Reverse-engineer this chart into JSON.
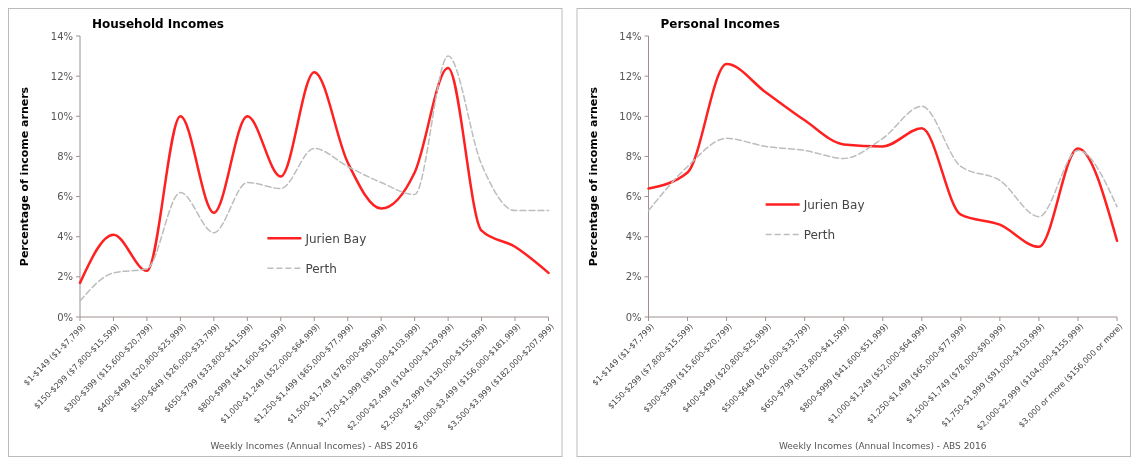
{
  "chart_data": [
    {
      "type": "line",
      "title": "Household Incomes",
      "xlabel": "Weekly Incomes (Annual Incomes) - ABS 2016",
      "ylabel": "Percentage of income arners",
      "categories": [
        "$1-$149 ($1-$7,799)",
        "$150-$299 ($7,800-$15,599)",
        "$300-$399 ($15,600-$20,799)",
        "$400-$499 ($20,800-$25,999)",
        "$500-$649 ($26,000-$33,799)",
        "$650-$799 ($33,800-$41,599)",
        "$800-$999 ($41,600-$51,999)",
        "$1,000-$1,249 ($52,000-$64,999)",
        "$1,250-$1,499 ($65,000-$77,999)",
        "$1,500-$1,749 ($78,000-$90,999)",
        "$1,750-$1,999 ($91,000-$103,999)",
        "$2,000-$2,499 ($104,000-$129,999)",
        "$2,500-$2,999 ($130,000-$155,999)",
        "$3,000-$3,499 ($156,000-$181,999)",
        "$3,500-$3,999 ($182,000-$207,999)"
      ],
      "series": [
        {
          "name": "Jurien Bay",
          "color": "#ff2121",
          "line_style": "solid",
          "values": [
            1.7,
            4.1,
            2.3,
            10.0,
            5.2,
            10.0,
            7.0,
            12.2,
            7.7,
            5.4,
            7.2,
            12.4,
            4.3,
            3.5,
            2.2
          ]
        },
        {
          "name": "Perth",
          "color": "#bdbdbd",
          "line_style": "dashed",
          "values": [
            0.8,
            2.2,
            2.4,
            6.2,
            4.2,
            6.7,
            6.4,
            8.4,
            7.5,
            6.7,
            6.1,
            13.0,
            7.6,
            5.3,
            5.3
          ]
        }
      ],
      "ylim": [
        0,
        14
      ],
      "yticks": [
        {
          "value": 0,
          "label": "0%"
        },
        {
          "value": 2,
          "label": "2%"
        },
        {
          "value": 4,
          "label": "4%"
        },
        {
          "value": 6,
          "label": "6%"
        },
        {
          "value": 8,
          "label": "8%"
        },
        {
          "value": 10,
          "label": "10%"
        },
        {
          "value": 12,
          "label": "12%"
        },
        {
          "value": 14,
          "label": "14%"
        }
      ],
      "legend": "bottom",
      "marker": "none"
    },
    {
      "type": "line",
      "title": "Personal Incomes",
      "xlabel": "Weekly Incomes (Annual Incomes) - ABS 2016",
      "ylabel": "Percentage of income arners",
      "categories": [
        "$1-$149 ($1-$7,799)",
        "$150-$299 ($7,800-$15,599)",
        "$300-$399 ($15,600-$20,799)",
        "$400-$499 ($20,800-$25,999)",
        "$500-$649 ($26,000-$33,799)",
        "$650-$799 ($33,800-$41,599)",
        "$800-$999 ($41,600-$51,999)",
        "$1,000-$1,249 ($52,000-$64,999)",
        "$1,250-$1,499 ($65,000-$77,999)",
        "$1,500-$1,749 ($78,000-$90,999)",
        "$1,750-$1,999 ($91,000-$103,999)",
        "$2,000-$2,999 ($104,000-$155,999)",
        "$3,000 or more ($156,000 or more)"
      ],
      "series": [
        {
          "name": "Jurien Bay",
          "color": "#ff2121",
          "line_style": "solid",
          "values": [
            6.4,
            7.2,
            12.6,
            11.2,
            9.8,
            8.6,
            8.5,
            9.4,
            5.1,
            4.6,
            3.5,
            8.4,
            3.8
          ]
        },
        {
          "name": "Perth",
          "color": "#bdbdbd",
          "line_style": "dashed",
          "values": [
            5.3,
            7.5,
            8.9,
            8.5,
            8.3,
            7.9,
            8.9,
            10.5,
            7.5,
            6.8,
            5.0,
            8.3,
            5.5
          ]
        }
      ],
      "ylim": [
        0,
        14
      ],
      "yticks": [
        {
          "value": 0,
          "label": "0%"
        },
        {
          "value": 2,
          "label": "2%"
        },
        {
          "value": 4,
          "label": "4%"
        },
        {
          "value": 6,
          "label": "6%"
        },
        {
          "value": 8,
          "label": "8%"
        },
        {
          "value": 10,
          "label": "10%"
        },
        {
          "value": 12,
          "label": "12%"
        },
        {
          "value": 14,
          "label": "14%"
        }
      ],
      "legend": "bottom left",
      "marker": "none"
    }
  ]
}
